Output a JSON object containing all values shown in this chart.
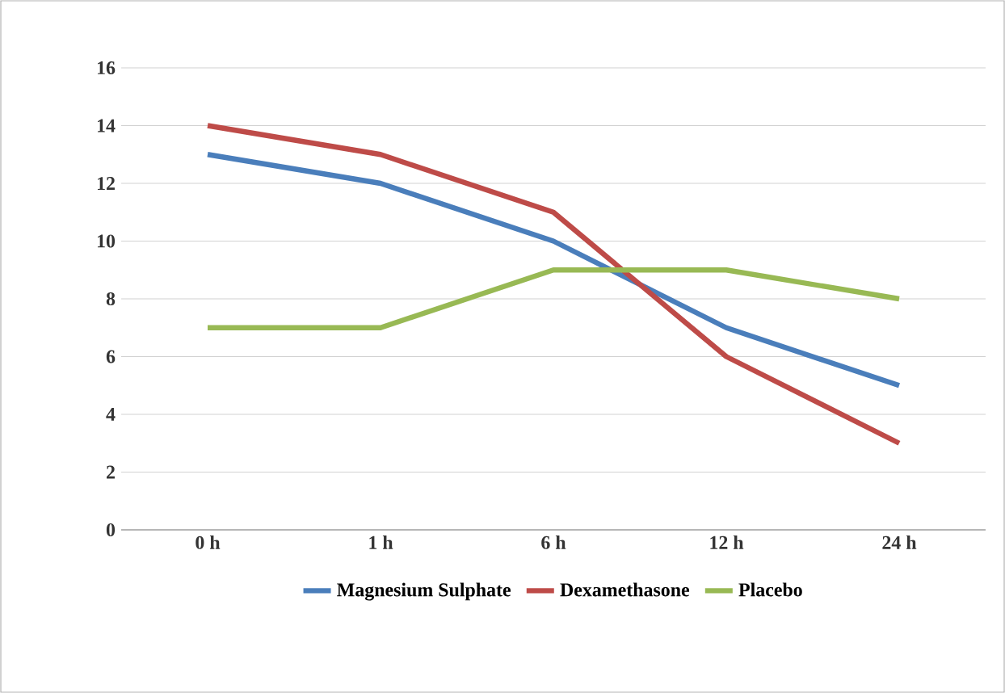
{
  "chart_data": {
    "type": "line",
    "categories": [
      "0 h",
      "1 h",
      "6 h",
      "12 h",
      "24 h"
    ],
    "series": [
      {
        "name": "Magnesium Sulphate",
        "color": "#4a7ebb",
        "values": [
          13,
          12,
          10,
          7,
          5
        ]
      },
      {
        "name": "Dexamethasone",
        "color": "#be4b48",
        "values": [
          14,
          13,
          11,
          6,
          3
        ]
      },
      {
        "name": "Placebo",
        "color": "#98b954",
        "values": [
          7,
          7,
          9,
          9,
          8
        ]
      }
    ],
    "ylim": [
      0,
      16
    ],
    "yticks": [
      0,
      2,
      4,
      6,
      8,
      10,
      12,
      14,
      16
    ],
    "grid": "y",
    "legend": "bottom"
  }
}
